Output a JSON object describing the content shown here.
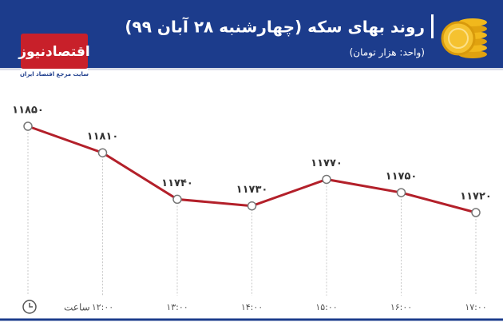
{
  "brand": {
    "name": "اقتصادنیوز",
    "tagline": "سایت مرجع اقتصاد ایران"
  },
  "chart_data": {
    "type": "line",
    "title": "روند بهای سکه (چهارشنبه ۲۸ آبان ۹۹)",
    "subtitle": "(واحد: هزار تومان)",
    "x_label": "ساعت",
    "categories": [
      null,
      "۱۲:۰۰",
      "۱۳:۰۰",
      "۱۴:۰۰",
      "۱۵:۰۰",
      "۱۶:۰۰",
      "۱۷:۰۰"
    ],
    "values": [
      11850,
      11810,
      11740,
      11730,
      11770,
      11750,
      11720
    ],
    "value_labels": [
      "۱۱۸۵۰",
      "۱۱۸۱۰",
      "۱۱۷۴۰",
      "۱۱۷۳۰",
      "۱۱۷۷۰",
      "۱۱۷۵۰",
      "۱۱۷۲۰"
    ],
    "color": "#b3202a"
  }
}
